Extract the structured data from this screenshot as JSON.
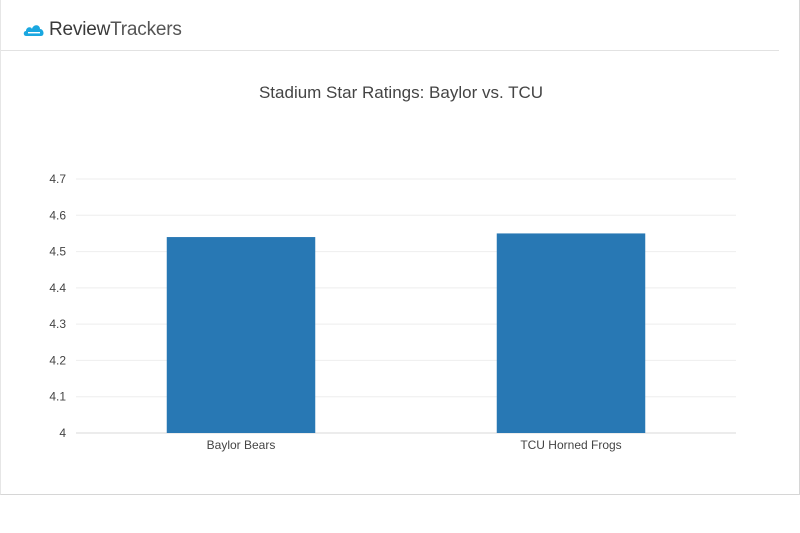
{
  "brand": {
    "name_part1": "Review",
    "name_part2": "Trackers",
    "icon": "cloud-icon",
    "icon_color": "#1aa7e0"
  },
  "chart_data": {
    "type": "bar",
    "title": "Stadium Star Ratings: Baylor vs. TCU",
    "categories": [
      "Baylor Bears",
      "TCU Horned Frogs"
    ],
    "values": [
      4.54,
      4.55
    ],
    "ylim": [
      4,
      4.7
    ],
    "yticks": [
      "4",
      "4.1",
      "4.2",
      "4.3",
      "4.4",
      "4.5",
      "4.6",
      "4.7"
    ],
    "xlabel": "",
    "ylabel": "",
    "grid": true,
    "bar_color": "#2878b4"
  }
}
